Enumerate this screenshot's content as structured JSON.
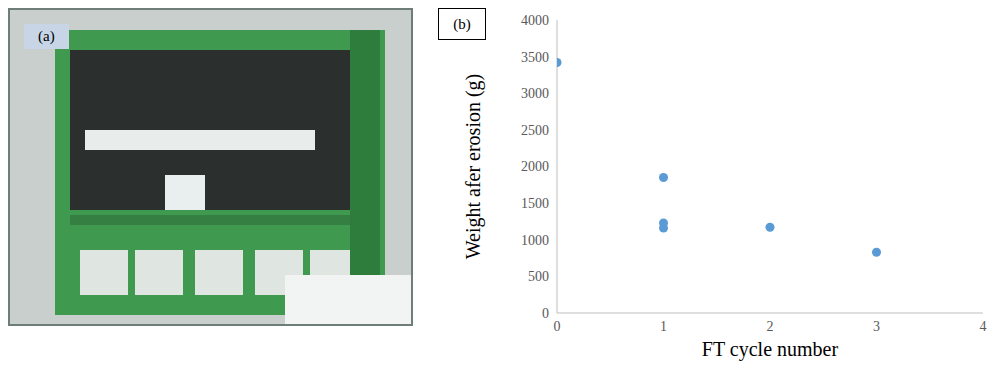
{
  "photo": {
    "label": "(a)"
  },
  "chart_data": {
    "type": "scatter",
    "annotations": [
      "(b)"
    ],
    "x_label": "FT cycle number",
    "y_label": "Weight afer erosion (g)",
    "x": [
      0,
      1,
      1,
      1,
      2,
      3
    ],
    "values": [
      3420,
      1850,
      1230,
      1160,
      1170,
      830
    ],
    "color": "#5b9bd5",
    "marker": "circle",
    "xlim": [
      0,
      4
    ],
    "xticks": [
      0,
      1,
      2,
      3,
      4
    ],
    "ylim": [
      0,
      4000
    ],
    "yticks": [
      0,
      500,
      1000,
      1500,
      2000,
      2500,
      3000,
      3500,
      4000
    ],
    "grid": false
  }
}
